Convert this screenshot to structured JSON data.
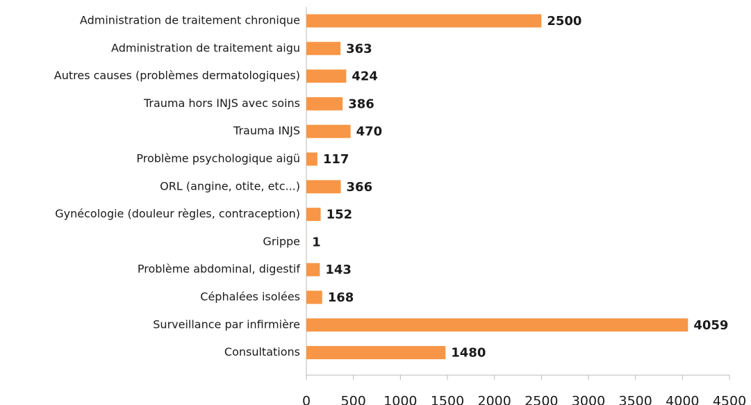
{
  "chart_data": {
    "type": "bar",
    "orientation": "horizontal",
    "categories": [
      "Administration de traitement chronique",
      "Administration de traitement aigu",
      "Autres causes (problèmes dermatologiques)",
      "Trauma hors INJS avec soins",
      "Trauma INJS",
      "Problème psychologique aigü",
      "ORL (angine, otite, etc...)",
      "Gynécologie (douleur règles, contraception)",
      "Grippe",
      "Problème abdominal, digestif",
      "Céphalées isolées",
      "Surveillance par infirmière",
      "Consultations"
    ],
    "values": [
      2500,
      363,
      424,
      386,
      470,
      117,
      366,
      152,
      1,
      143,
      168,
      4059,
      1480
    ],
    "color": "#f79646",
    "xlim": [
      0,
      4500
    ],
    "xticks": [
      0,
      500,
      1000,
      1500,
      2000,
      2500,
      3000,
      3500,
      4000,
      4500
    ]
  }
}
